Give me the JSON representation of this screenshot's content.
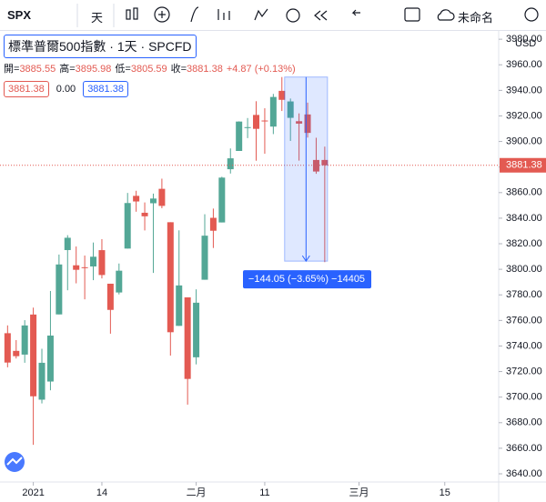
{
  "toolbar": {
    "symbol": "SPX",
    "interval": "天",
    "layout_name": "未命名"
  },
  "legend": {
    "title": "標準普爾500指數",
    "interval": "1天",
    "exchange": "SPCFD",
    "ohlc": [
      {
        "label": "開=",
        "value": "3885.55"
      },
      {
        "label": "高=",
        "value": "3895.98"
      },
      {
        "label": "低=",
        "value": "3805.59"
      },
      {
        "label": "收=",
        "value": "3881.38"
      }
    ],
    "change": "+4.87 (+0.13%)",
    "fields": [
      "3881.38",
      "0.00",
      "3881.38"
    ]
  },
  "chart_data": {
    "type": "candlestick",
    "currency": "USD",
    "x": [
      -3,
      -2,
      -1,
      0,
      1,
      2,
      3,
      4,
      5,
      6,
      7,
      8,
      9,
      10,
      11,
      12,
      13,
      14,
      15,
      16,
      17,
      18,
      19,
      20,
      21,
      22,
      23,
      24,
      25,
      26,
      27,
      28,
      29,
      30,
      31,
      32,
      33,
      34
    ],
    "open": [
      3750.01,
      3736.19,
      3733.27,
      3764.61,
      3698.02,
      3712.2,
      3764.71,
      3815.05,
      3803.14,
      3801.62,
      3802.23,
      3814.98,
      3788.73,
      3781.88,
      3816.22,
      3857.46,
      3844.24,
      3851.68,
      3862.96,
      3836.83,
      3755.75,
      3778.05,
      3731.17,
      3791.84,
      3840.27,
      3836.66,
      3878.3,
      3892.59,
      3910.49,
      3920.78,
      3916.4,
      3911.65,
      3939.61,
      3918.5,
      3915.86,
      3921.16,
      3885.55,
      3885.55
    ],
    "high": [
      3756.12,
      3744.63,
      3760.2,
      3769.99,
      3737.83,
      3783.04,
      3811.55,
      3826.69,
      3817.86,
      3810.78,
      3820.96,
      3823.6,
      3788.73,
      3804.53,
      3859.75,
      3861.45,
      3852.31,
      3859.23,
      3870.9,
      3836.83,
      3830.5,
      3778.05,
      3784.32,
      3843.09,
      3847.51,
      3872.42,
      3894.56,
      3915.77,
      3918.35,
      3931.5,
      3925.99,
      3937.23,
      3950.43,
      3933.61,
      3921.98,
      3930.41,
      3902.92,
      3895.98
    ],
    "low": [
      3723.31,
      3730.21,
      3726.88,
      3662.71,
      3695.07,
      3705.34,
      3764.71,
      3783.6,
      3789.02,
      3776.51,
      3791.5,
      3792.86,
      3749.62,
      3780.37,
      3816.22,
      3845.05,
      3830.41,
      3797.16,
      3847.78,
      3732.48,
      3755.75,
      3694.12,
      3725.62,
      3791.84,
      3816.68,
      3836.66,
      3874.93,
      3892.59,
      3902.64,
      3884.94,
      3890.39,
      3905.78,
      3923.85,
      3900.43,
      3885.03,
      3903.07,
      3874.71,
      3805.59
    ],
    "close": [
      3727.04,
      3732.04,
      3756.07,
      3700.65,
      3726.86,
      3748.14,
      3803.79,
      3824.68,
      3799.61,
      3801.19,
      3809.84,
      3795.54,
      3768.25,
      3798.91,
      3851.85,
      3853.07,
      3841.47,
      3855.36,
      3849.62,
      3750.77,
      3787.38,
      3714.24,
      3773.86,
      3826.31,
      3830.17,
      3871.74,
      3886.83,
      3915.59,
      3911.23,
      3909.88,
      3916.38,
      3934.83,
      3932.59,
      3931.33,
      3913.97,
      3906.71,
      3876.5,
      3881.38
    ],
    "up_color": "#53a796",
    "down_color": "#e35a52",
    "xlim": [
      -3.885,
      54.29
    ],
    "ylim": [
      3633.6,
      3986.5
    ],
    "xticks": [
      {
        "value": 0,
        "label": "2021"
      },
      {
        "value": 8,
        "label": "14"
      },
      {
        "value": 19,
        "label": "二月"
      },
      {
        "value": 27,
        "label": "11"
      },
      {
        "value": 38,
        "label": "三月"
      },
      {
        "value": 48,
        "label": "15"
      }
    ],
    "yticks": [
      {
        "value": 3640,
        "label": "3640.00"
      },
      {
        "value": 3660,
        "label": "3660.00"
      },
      {
        "value": 3680,
        "label": "3680.00"
      },
      {
        "value": 3700,
        "label": "3700.00"
      },
      {
        "value": 3720,
        "label": "3720.00"
      },
      {
        "value": 3740,
        "label": "3740.00"
      },
      {
        "value": 3760,
        "label": "3760.00"
      },
      {
        "value": 3780,
        "label": "3780.00"
      },
      {
        "value": 3800,
        "label": "3800.00"
      },
      {
        "value": 3820,
        "label": "3820.00"
      },
      {
        "value": 3840,
        "label": "3840.00"
      },
      {
        "value": 3860,
        "label": "3860.00"
      },
      {
        "value": 3880,
        "label": "3880.00"
      },
      {
        "value": 3900,
        "label": "3900.00"
      },
      {
        "value": 3920,
        "label": "3920.00"
      },
      {
        "value": 3940,
        "label": "3940.00"
      },
      {
        "value": 3960,
        "label": "3960.00"
      },
      {
        "value": 3980,
        "label": "3980.00"
      }
    ],
    "last_price_label": "3881.38",
    "measure": {
      "x": [
        29,
        34
      ],
      "from": 3950.43,
      "to": 3806.38,
      "label": "−144.05 (−3.65%) −14405"
    }
  }
}
